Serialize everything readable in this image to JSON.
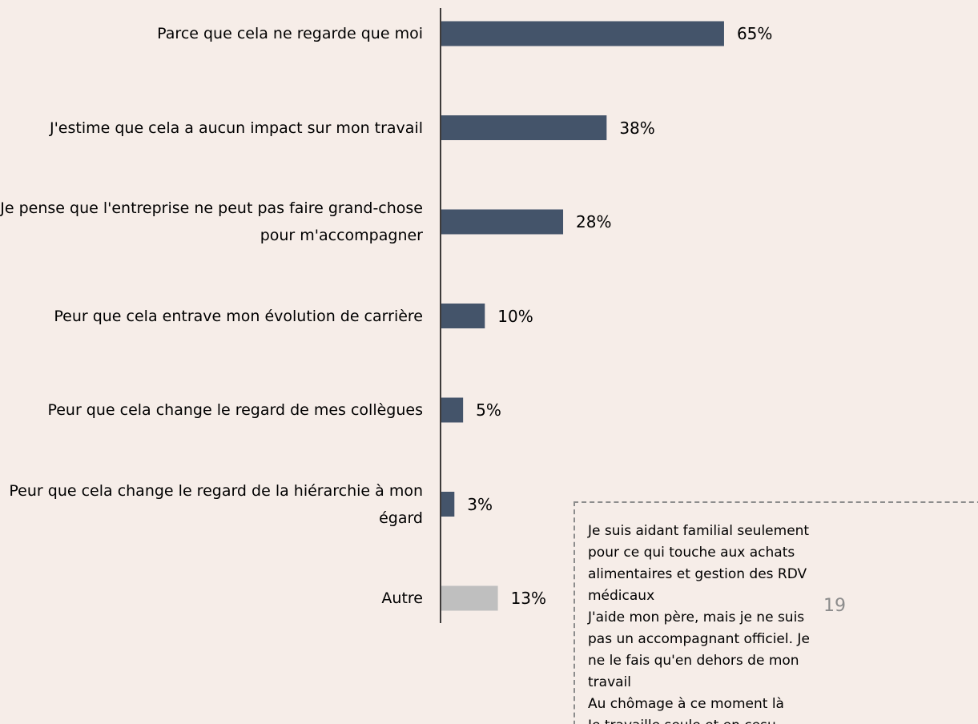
{
  "chart_data": {
    "type": "bar",
    "categories": [
      "Parce que cela ne regarde que moi",
      "J'estime que cela a aucun impact sur mon travail",
      "Je pense que l'entreprise ne peut pas faire grand-chose pour m'accompagner",
      "Peur que cela entrave mon évolution de carrière",
      "Peur que cela change le regard de mes collègues",
      "Peur que cela change le regard de la hiérarchie à mon égard",
      "Autre"
    ],
    "values": [
      65,
      38,
      28,
      10,
      5,
      3,
      13
    ],
    "value_labels": [
      "65%",
      "38%",
      "28%",
      "10%",
      "5%",
      "3%",
      "13%"
    ],
    "colors": [
      "#44546a",
      "#44546a",
      "#44546a",
      "#44546a",
      "#44546a",
      "#44546a",
      "#bfbfbf"
    ],
    "annotation": [
      "Je suis aidant familial seulement pour ce qui touche aux achats alimentaires et gestion des RDV médicaux",
      "J'aide mon père, mais je ne suis pas un accompagnant officiel. Je ne le fais qu'en dehors de mon travail",
      "Au chômage à ce moment là",
      "Je travaille seule et en cesu"
    ]
  },
  "page_number": "19"
}
